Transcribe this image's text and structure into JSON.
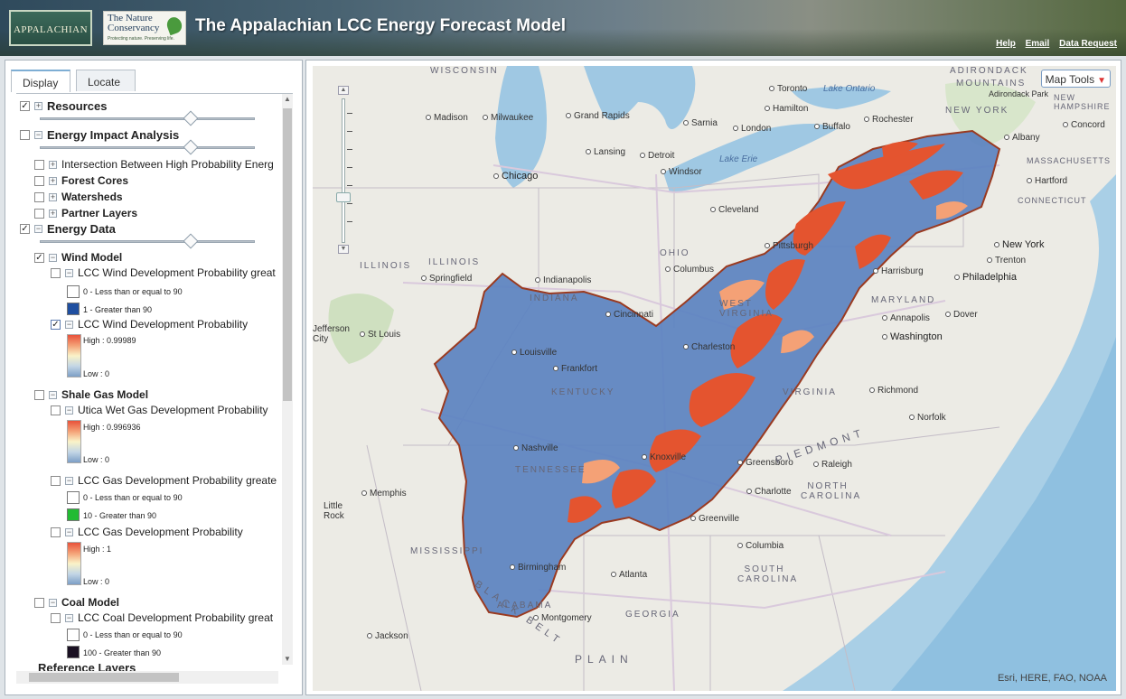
{
  "header": {
    "logo_left_text": "APPALACHIAN",
    "logo_right_line1": "The Nature",
    "logo_right_line2": "Conservancy",
    "logo_right_tagline": "Protecting nature. Preserving life.",
    "title": "The Appalachian LCC Energy Forecast Model",
    "links": [
      "Help",
      "Email",
      "Data Request"
    ]
  },
  "tabs": {
    "display": "Display",
    "locate": "Locate"
  },
  "tree": {
    "resources": "Resources",
    "energy_impact": "Energy Impact Analysis",
    "intersection": "Intersection Between High Probability Energ",
    "forest_cores": "Forest Cores",
    "watersheds": "Watersheds",
    "partner_layers": "Partner Layers",
    "energy_data": "Energy Data",
    "wind_model": "Wind Model",
    "wind_greater": "LCC Wind Development Probability great",
    "wind_greater_leg0": "0 - Less than or equal to 90",
    "wind_greater_leg1": "1 - Greater than 90",
    "wind_prob": "LCC Wind Development Probability",
    "wind_high": "High : 0.99989",
    "wind_low": "Low : 0",
    "shale_model": "Shale Gas Model",
    "utica": "Utica Wet Gas Development Probability",
    "utica_high": "High : 0.996936",
    "utica_low": "Low : 0",
    "gas_greater": "LCC Gas Development Probability greate",
    "gas_greater_leg0": "0 - Less than or equal to 90",
    "gas_greater_leg1": "10 - Greater than 90",
    "gas_prob": "LCC Gas Development Probability",
    "gas_high": "High : 1",
    "gas_low": "Low : 0",
    "coal_model": "Coal Model",
    "coal_greater": "LCC Coal Development Probability great",
    "coal_leg0": "0 - Less than or equal to 90",
    "coal_leg1": "100 - Greater than 90",
    "reference": "Reference Layers"
  },
  "layer_state": {
    "resources_checked": true,
    "energy_data_checked": true,
    "wind_model_checked": true,
    "wind_prob_checked": true,
    "resources_opacity_pct": 72,
    "energy_impact_opacity_pct": 72,
    "energy_data_opacity_pct": 72
  },
  "colors": {
    "wind_leg1": "#1f4fa0",
    "gas_leg1": "#22bb33",
    "coal_leg1": "#1a1022",
    "study_area": "#5b82c0",
    "study_outline": "#9a3a20",
    "hotspot": "#e4542f"
  },
  "map": {
    "tools_label": "Map Tools",
    "attribution": "Esri, HERE, FAO, NOAA",
    "labels": {
      "wisconsin": "WISCONSIN",
      "adirondack": "ADIRONDACK",
      "mountains": "MOUNTAINS",
      "adirondack_park": "Adirondack Park",
      "toronto": "Toronto",
      "lake_ontario": "Lake Ontario",
      "madison": "Madison",
      "milwaukee": "Milwaukee",
      "grand_rapids": "Grand Rapids",
      "hamilton": "Hamilton",
      "rochester": "Rochester",
      "buffalo": "Buffalo",
      "sarnia": "Sarnia",
      "london": "London",
      "albany": "Albany",
      "new_york_state": "NEW YORK",
      "new_hampshire": "NEW HAMPSHIRE",
      "concord": "Concord",
      "lansing": "Lansing",
      "detroit": "Detroit",
      "windsor": "Windsor",
      "chicago": "Chicago",
      "lake_erie": "Lake Erie",
      "massachusetts": "MASSACHUSETTS",
      "hartford": "Hartford",
      "connecticut": "CONNECTICUT",
      "cleveland": "Cleveland",
      "pittsburgh": "Pittsburgh",
      "illinois": "ILLINOIS",
      "springfield": "Springfield",
      "indianapolis": "Indianapolis",
      "indiana": "INDIANA",
      "ohio": "OHIO",
      "columbus": "Columbus",
      "harrisburg": "Harrisburg",
      "new_york": "New York",
      "trenton": "Trenton",
      "philadelphia": "Philadelphia",
      "maryland": "MARYLAND",
      "annapolis": "Annapolis",
      "dover": "Dover",
      "washington": "Washington",
      "cincinnati": "Cincinnati",
      "west_virginia": "WEST VIRGINIA",
      "charleston": "Charleston",
      "jefferson_city": "Jefferson City",
      "st_louis": "St Louis",
      "louisville": "Louisville",
      "frankfort": "Frankfort",
      "kentucky": "KENTUCKY",
      "virginia": "VIRGINIA",
      "richmond": "Richmond",
      "norfolk": "Norfolk",
      "nashville": "Nashville",
      "tennessee": "TENNESSEE",
      "knoxville": "Knoxville",
      "greensboro": "Greensboro",
      "raleigh": "Raleigh",
      "piedmont": "PIEDMONT",
      "north_carolina": "NORTH CAROLINA",
      "charlotte": "Charlotte",
      "memphis": "Memphis",
      "little_rock": "Little Rock",
      "greenville": "Greenville",
      "columbia": "Columbia",
      "south_carolina": "SOUTH CAROLINA",
      "mississippi": "MISSISSIPPI",
      "birmingham": "Birmingham",
      "atlanta": "Atlanta",
      "alabama": "ALABAMA",
      "georgia": "GEORGIA",
      "montgomery": "Montgomery",
      "black_belt": "BLACK BELT",
      "jackson": "Jackson",
      "plain": "PLAIN"
    }
  }
}
